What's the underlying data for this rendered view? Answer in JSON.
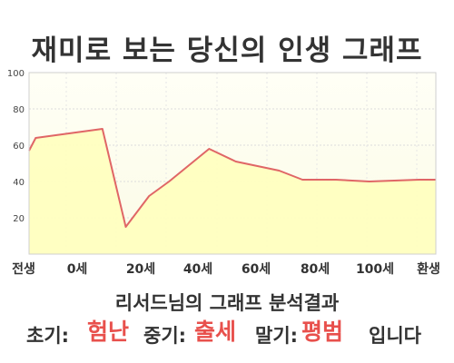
{
  "header": {
    "title": "재미로 보는 당신의 인생 그래프"
  },
  "chart_data": {
    "type": "area",
    "title": "재미로 보는 당신의 인생 그래프",
    "categories": [
      "전생",
      "0세",
      "20세",
      "40세",
      "60세",
      "80세",
      "100세",
      "환생"
    ],
    "series": [
      {
        "x": [
          -2,
          0,
          20,
          27,
          34,
          40,
          52,
          60,
          73,
          80,
          90,
          100,
          115,
          120
        ],
        "y": [
          57,
          64,
          69,
          15,
          32,
          40,
          58,
          51,
          46,
          41,
          41,
          40,
          41,
          41
        ]
      }
    ],
    "ylim": [
      0,
      100
    ],
    "yticks": [
      20,
      40,
      60,
      80,
      100
    ],
    "line_color": "#e06666",
    "fill_color": "#ffffc0",
    "grid": true
  },
  "analysis": {
    "heading": "리서드님의 그래프 분석결과",
    "early_label": "초기:",
    "early_value": "험난",
    "middle_label": "중기:",
    "middle_value": "출세",
    "late_label": "말기:",
    "late_value": "평범",
    "ending": "입니다"
  }
}
